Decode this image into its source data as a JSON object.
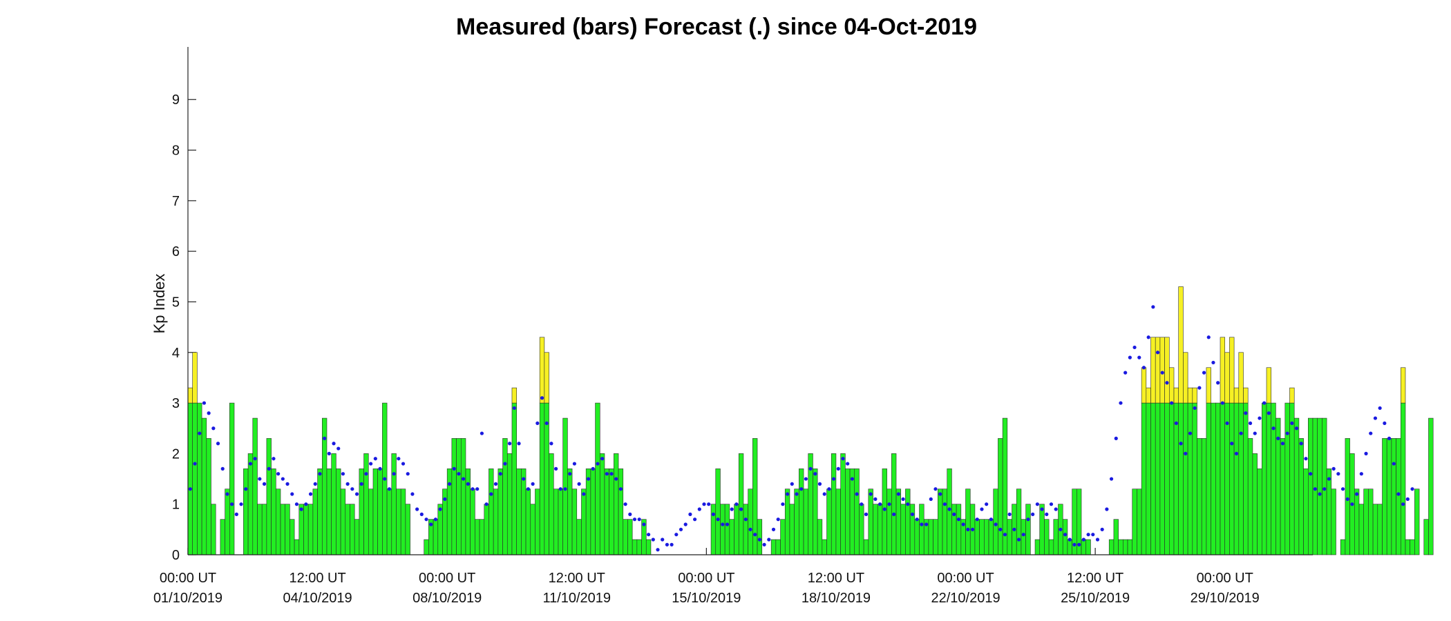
{
  "colors": {
    "measured_green": "#22ee22",
    "measured_yellow": "#f6f024",
    "forecast_blue": "#1a1ae0"
  },
  "chart_data": {
    "type": "bar",
    "title": "Measured (bars) Forecast (.) since 04-Oct-2019",
    "xlabel": "",
    "ylabel": "Kp Index",
    "ylim": [
      0,
      10
    ],
    "xlim": [
      "2019-10-01 00:00",
      "2019-10-31 09:00"
    ],
    "bar_interval_hours": 3,
    "grid": false,
    "legend": "none",
    "yticks": [
      0,
      1,
      2,
      3,
      4,
      5,
      6,
      7,
      8,
      9
    ],
    "xticks": [
      {
        "x": "2019-10-01 00:00",
        "line1": "00:00 UT",
        "line2": "01/10/2019"
      },
      {
        "x": "2019-10-04 12:00",
        "line1": "12:00 UT",
        "line2": "04/10/2019"
      },
      {
        "x": "2019-10-08 00:00",
        "line1": "00:00 UT",
        "line2": "08/10/2019"
      },
      {
        "x": "2019-10-11 12:00",
        "line1": "12:00 UT",
        "line2": "11/10/2019"
      },
      {
        "x": "2019-10-15 00:00",
        "line1": "00:00 UT",
        "line2": "15/10/2019"
      },
      {
        "x": "2019-10-18 12:00",
        "line1": "12:00 UT",
        "line2": "18/10/2019"
      },
      {
        "x": "2019-10-22 00:00",
        "line1": "00:00 UT",
        "line2": "22/10/2019"
      },
      {
        "x": "2019-10-25 12:00",
        "line1": "12:00 UT",
        "line2": "25/10/2019"
      },
      {
        "x": "2019-10-29 00:00",
        "line1": "00:00 UT",
        "line2": "29/10/2019"
      }
    ],
    "series": [
      {
        "kind": "bars",
        "start": "2019-10-01 00:00",
        "values": [
          3.3,
          4.0,
          3.0,
          2.7,
          2.3,
          1.0,
          0,
          0.7,
          1.3,
          3.0,
          0,
          0,
          1.7,
          2.0,
          2.7,
          1.0,
          1.0,
          2.3,
          1.7,
          1.3,
          1.0,
          1.0,
          0.7,
          0.3,
          1.0,
          1.0,
          1.0,
          1.3,
          1.7,
          2.7,
          1.7,
          2.0,
          1.7,
          1.3,
          1.0,
          1.0,
          0.7,
          1.7,
          2.0,
          1.3,
          1.7,
          1.7,
          3.0,
          1.3,
          2.0,
          1.3,
          1.3,
          1.0,
          0,
          0,
          0,
          0.3,
          0.7,
          0.7,
          1.0,
          1.3,
          1.7,
          2.3,
          2.3,
          2.3,
          1.7,
          1.3,
          0.7,
          0.7,
          1.0,
          1.7,
          1.3,
          1.7,
          2.3,
          2.0,
          3.3,
          1.7,
          1.7,
          1.3,
          1.0,
          1.3,
          4.3,
          4.0,
          2.0,
          1.3,
          1.3,
          2.7,
          1.7,
          1.3,
          0.7,
          1.3,
          1.7,
          1.7,
          3.0,
          2.0,
          1.7,
          1.7,
          2.0,
          1.7,
          0.7,
          0.7,
          0.3,
          0.3,
          0.7,
          0.3,
          0,
          0,
          0,
          0,
          0,
          0,
          0,
          0,
          0,
          0,
          0,
          0,
          0,
          1.0,
          1.7,
          1.0,
          1.0,
          0.7,
          1.0,
          2.0,
          1.0,
          1.3,
          2.3,
          0.7,
          0,
          0,
          0.3,
          0.3,
          0.7,
          1.3,
          1.0,
          1.3,
          1.7,
          1.3,
          2.0,
          1.7,
          0.7,
          0.3,
          1.3,
          2.0,
          1.3,
          2.0,
          1.7,
          1.7,
          1.7,
          1.0,
          0.3,
          1.3,
          1.0,
          1.0,
          1.7,
          1.3,
          2.0,
          1.3,
          1.0,
          1.3,
          1.0,
          0.7,
          1.0,
          0.7,
          0.7,
          0.7,
          1.3,
          1.3,
          1.7,
          1.0,
          1.0,
          0.7,
          1.3,
          1.0,
          0.7,
          0.7,
          0.7,
          0.7,
          1.3,
          2.3,
          2.7,
          0.7,
          1.0,
          1.3,
          0.7,
          1.0,
          0,
          0.3,
          1.0,
          0.7,
          0.3,
          0.7,
          1.0,
          0.7,
          0.3,
          1.3,
          1.3,
          0.3,
          0.3,
          0,
          0,
          0,
          0,
          0.3,
          0.7,
          0.3,
          0.3,
          0.3,
          1.3,
          1.3,
          3.7,
          3.3,
          4.3,
          4.3,
          4.3,
          4.3,
          3.7,
          3.3,
          5.3,
          4.0,
          3.3,
          3.3,
          2.3,
          2.3,
          3.7,
          3.0,
          3.0,
          4.3,
          4.0,
          4.3,
          3.3,
          4.0,
          3.3,
          2.3,
          2.0,
          1.7,
          3.0,
          3.7,
          3.0,
          2.7,
          2.3,
          3.0,
          3.3,
          2.7,
          2.3,
          1.7,
          2.7,
          2.7,
          2.7,
          2.7,
          1.7,
          1.3,
          0,
          0.3,
          2.3,
          2.0,
          1.3,
          1.0,
          1.3,
          1.3,
          1.0,
          1.0,
          2.3,
          2.3,
          2.3,
          2.3,
          3.7,
          0.3,
          0.3,
          1.3,
          0,
          0.7,
          2.7
        ],
        "threshold": 3.0
      },
      {
        "kind": "points",
        "start": "2019-10-01 00:00",
        "values": [
          1.3,
          1.8,
          2.4,
          3.0,
          2.8,
          2.5,
          2.2,
          1.7,
          1.2,
          1.0,
          0.8,
          1.0,
          1.3,
          1.8,
          1.9,
          1.5,
          1.4,
          1.7,
          1.9,
          1.6,
          1.5,
          1.4,
          1.2,
          1.0,
          0.9,
          1.0,
          1.2,
          1.4,
          1.6,
          2.3,
          2.0,
          2.2,
          2.1,
          1.6,
          1.4,
          1.3,
          1.2,
          1.4,
          1.6,
          1.8,
          1.9,
          1.7,
          1.5,
          1.3,
          1.6,
          1.9,
          1.8,
          1.6,
          1.2,
          0.9,
          0.8,
          0.7,
          0.6,
          0.7,
          0.9,
          1.1,
          1.4,
          1.7,
          1.6,
          1.5,
          1.4,
          1.3,
          1.3,
          2.4,
          1.0,
          1.2,
          1.4,
          1.6,
          1.8,
          2.2,
          2.9,
          2.2,
          1.5,
          1.3,
          1.4,
          2.6,
          3.1,
          2.6,
          2.2,
          1.7,
          1.3,
          1.3,
          1.6,
          1.8,
          1.4,
          1.2,
          1.5,
          1.7,
          1.8,
          1.9,
          1.6,
          1.6,
          1.5,
          1.3,
          1.0,
          0.8,
          0.7,
          0.7,
          0.6,
          0.4,
          0.3,
          0.1,
          0.3,
          0.2,
          0.2,
          0.4,
          0.5,
          0.6,
          0.8,
          0.7,
          0.9,
          1.0,
          1.0,
          0.8,
          0.7,
          0.6,
          0.6,
          0.9,
          1.0,
          0.9,
          0.7,
          0.5,
          0.4,
          0.3,
          0.2,
          0.3,
          0.5,
          0.7,
          1.0,
          1.2,
          1.4,
          1.2,
          1.3,
          1.5,
          1.7,
          1.6,
          1.4,
          1.2,
          1.3,
          1.5,
          1.7,
          1.9,
          1.8,
          1.5,
          1.2,
          1.0,
          0.8,
          1.2,
          1.1,
          1.0,
          0.9,
          1.0,
          0.8,
          1.2,
          1.1,
          1.0,
          0.8,
          0.7,
          0.6,
          0.6,
          1.1,
          1.3,
          1.2,
          1.0,
          0.9,
          0.8,
          0.7,
          0.6,
          0.5,
          0.5,
          0.7,
          0.9,
          1.0,
          0.7,
          0.6,
          0.5,
          0.4,
          0.8,
          0.5,
          0.3,
          0.4,
          0.7,
          0.8,
          1.0,
          0.9,
          0.8,
          1.0,
          0.9,
          0.5,
          0.4,
          0.3,
          0.2,
          0.2,
          0.3,
          0.4,
          0.4,
          0.3,
          0.5,
          0.9,
          1.5,
          2.3,
          3.0,
          3.6,
          3.9,
          4.1,
          3.9,
          3.7,
          4.3,
          4.9,
          4.0,
          3.6,
          3.4,
          3.0,
          2.6,
          2.2,
          2.0,
          2.4,
          2.9,
          3.3,
          3.6,
          4.3,
          3.8,
          3.4,
          3.0,
          2.6,
          2.2,
          2.0,
          2.4,
          2.8,
          2.6,
          2.4,
          2.7,
          3.0,
          2.8,
          2.5,
          2.3,
          2.2,
          2.4,
          2.6,
          2.5,
          2.2,
          1.9,
          1.6,
          1.3,
          1.2,
          1.3,
          1.5,
          1.7,
          1.6,
          1.3,
          1.1,
          1.0,
          1.2,
          1.6,
          2.0,
          2.4,
          2.7,
          2.9,
          2.6,
          2.3,
          1.8,
          1.2,
          1.0,
          1.1,
          1.3
        ]
      }
    ]
  }
}
